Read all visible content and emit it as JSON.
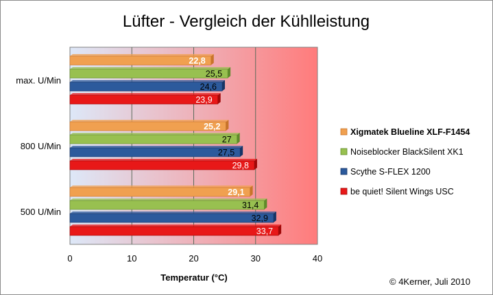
{
  "chart_data": {
    "type": "bar",
    "orientation": "horizontal",
    "title": "Lüfter - Vergleich der Kühlleistung",
    "xlabel": "Temperatur (°C)",
    "ylabel": "",
    "xlim": [
      0,
      40
    ],
    "xticks": [
      "0",
      "10",
      "20",
      "30",
      "40"
    ],
    "categories": [
      "max. U/Min",
      "800 U/Min",
      "500 U/Min"
    ],
    "series": [
      {
        "name": "Xigmatek Blueline XLF-F1454",
        "values": [
          22.8,
          25.2,
          29.1
        ],
        "labels": [
          "22,8",
          "25,2",
          "29,1"
        ],
        "color": "#f0a050",
        "dark": "#c8742a",
        "label_color": "#ffffff",
        "bold": true
      },
      {
        "name": "Noiseblocker BlackSilent XK1",
        "values": [
          25.5,
          27,
          31.4
        ],
        "labels": [
          "25,5",
          "27",
          "31,4"
        ],
        "color": "#98c050",
        "dark": "#5f8a2a",
        "label_color": "#000000",
        "bold": false
      },
      {
        "name": "Scythe S-FLEX 1200",
        "values": [
          24.6,
          27.5,
          32.9
        ],
        "labels": [
          "24,6",
          "27,5",
          "32,9"
        ],
        "color": "#2c5a9c",
        "dark": "#173566",
        "label_color": "#000000",
        "bold": false
      },
      {
        "name": "be quiet! Silent Wings USC",
        "values": [
          23.9,
          29.8,
          33.7
        ],
        "labels": [
          "23,9",
          "29,8",
          "33,7"
        ],
        "color": "#e81818",
        "dark": "#a00808",
        "label_color": "#ffffff",
        "bold": false
      }
    ],
    "legend_position": "right",
    "grid": true,
    "background_gradient": [
      "#dde8f8",
      "#ff7878"
    ]
  },
  "credit": "© 4Kerner, Juli 2010"
}
